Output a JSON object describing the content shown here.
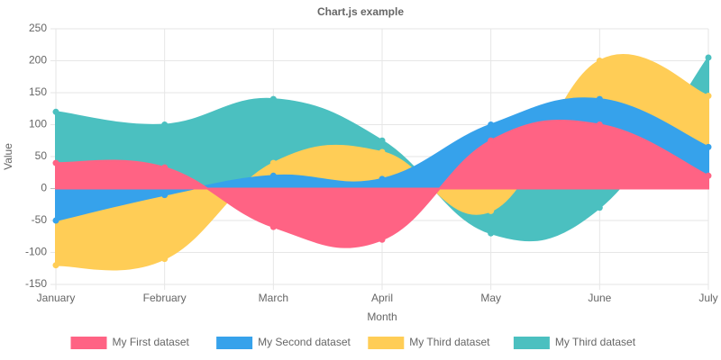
{
  "chart_data": {
    "type": "area",
    "title": "Chart.js example",
    "x_label": "Month",
    "y_label": "Value",
    "categories": [
      "January",
      "February",
      "March",
      "April",
      "May",
      "June",
      "July"
    ],
    "series": [
      {
        "name": "My First dataset",
        "color": "#ff6384",
        "values": [
          40,
          33,
          -60,
          -80,
          75,
          100,
          20
        ]
      },
      {
        "name": "My Second dataset",
        "color": "#36a2eb",
        "values": [
          -50,
          -10,
          20,
          15,
          100,
          140,
          65
        ]
      },
      {
        "name": "My Third dataset",
        "color": "#ffcd56",
        "values": [
          -120,
          -110,
          40,
          57,
          -35,
          200,
          145
        ]
      },
      {
        "name": "My Third dataset",
        "color": "#4bc0c0",
        "values": [
          120,
          100,
          140,
          75,
          -70,
          -30,
          205
        ]
      }
    ],
    "ylim": [
      -150,
      250
    ],
    "yticks": [
      -150,
      -100,
      -50,
      0,
      50,
      100,
      150,
      200,
      250
    ],
    "grid": true,
    "legend": "bottom"
  }
}
